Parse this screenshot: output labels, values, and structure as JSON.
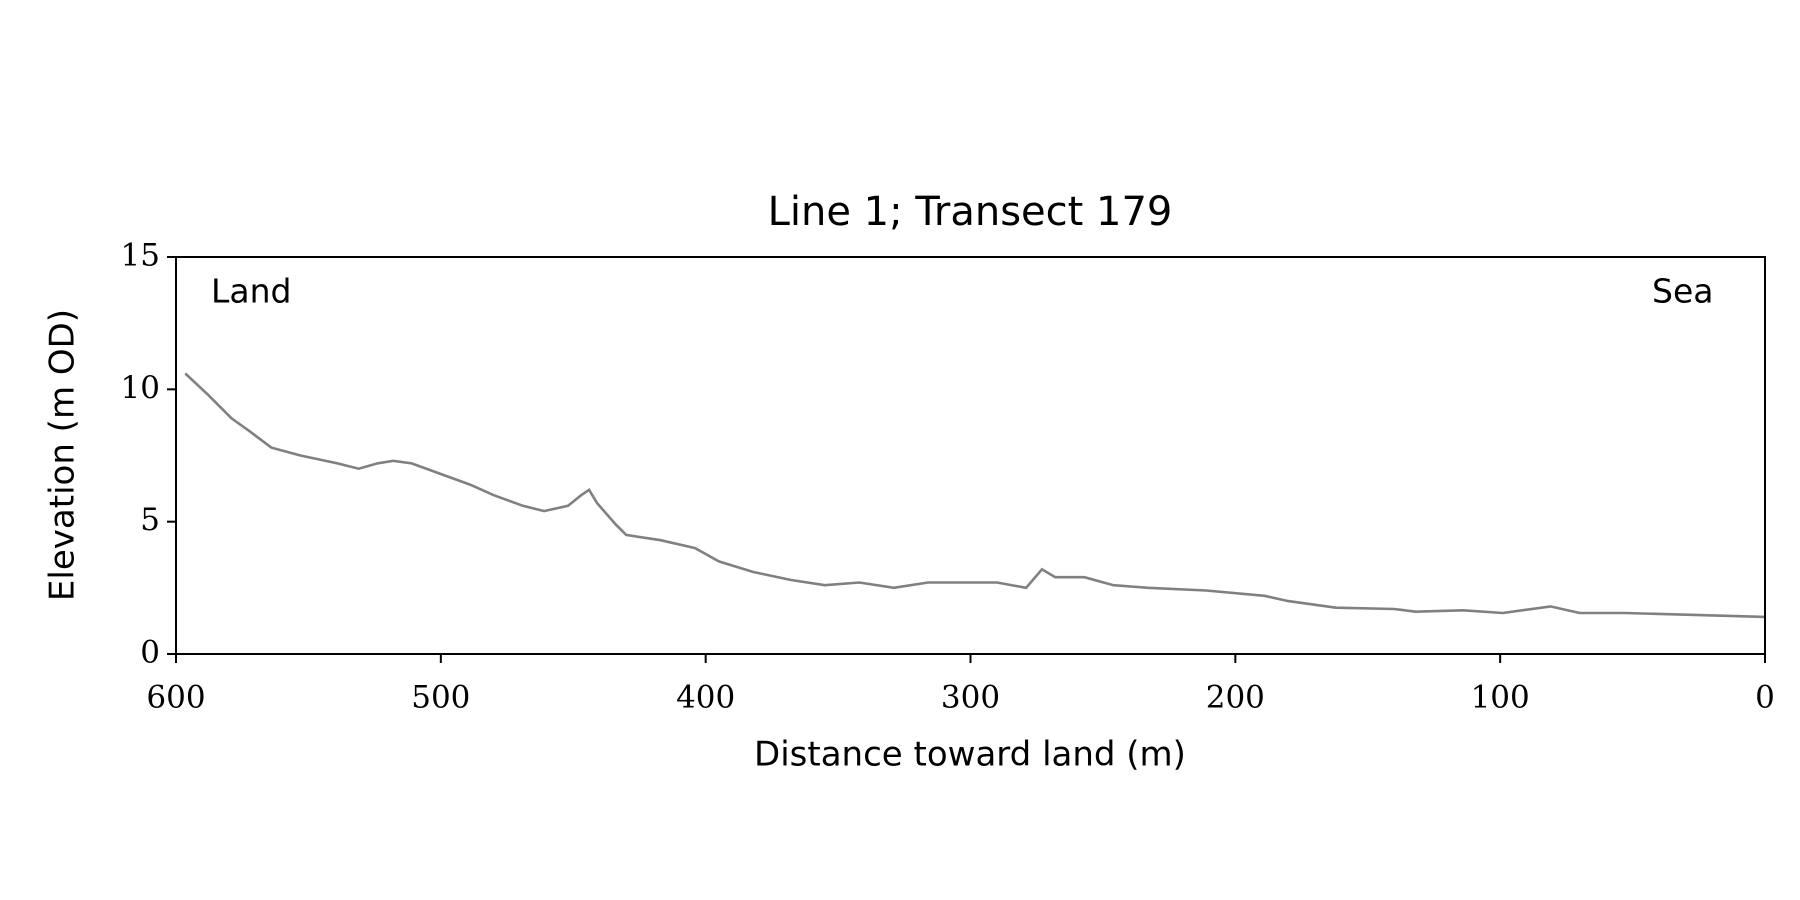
{
  "chart_data": {
    "type": "line",
    "title": "Line 1; Transect 179",
    "xlabel": "Distance toward land (m)",
    "ylabel": "Elevation (m OD)",
    "annotations": [
      "Land",
      "Sea"
    ],
    "color": "#808080",
    "x": [
      596.5,
      588,
      579,
      572,
      564,
      553,
      539,
      531,
      524,
      518,
      511,
      500,
      489,
      480,
      469,
      461,
      452,
      447,
      444,
      441,
      434,
      430,
      417,
      404,
      395,
      382,
      368,
      355,
      342,
      329,
      316,
      303,
      290,
      279,
      273,
      268,
      257,
      246,
      233,
      211,
      189,
      180,
      162,
      140,
      132,
      114,
      99,
      81,
      70,
      53,
      35,
      18,
      0
    ],
    "values": [
      10.6,
      9.8,
      8.9,
      8.4,
      7.8,
      7.5,
      7.2,
      7.0,
      7.2,
      7.3,
      7.2,
      6.8,
      6.4,
      6.0,
      5.6,
      5.4,
      5.6,
      6.0,
      6.2,
      5.7,
      4.9,
      4.5,
      4.3,
      4.0,
      3.5,
      3.1,
      2.8,
      2.6,
      2.7,
      2.5,
      2.7,
      2.7,
      2.7,
      2.5,
      3.2,
      2.9,
      2.9,
      2.6,
      2.5,
      2.4,
      2.2,
      2.0,
      1.75,
      1.7,
      1.6,
      1.65,
      1.55,
      1.8,
      1.55,
      1.55,
      1.5,
      1.45,
      1.4
    ],
    "xlim": [
      600,
      0
    ],
    "xticks": [
      600,
      500,
      400,
      300,
      200,
      100,
      0
    ],
    "ylim": [
      0,
      15
    ],
    "yticks": [
      0,
      5,
      10,
      15
    ],
    "grid": false
  }
}
